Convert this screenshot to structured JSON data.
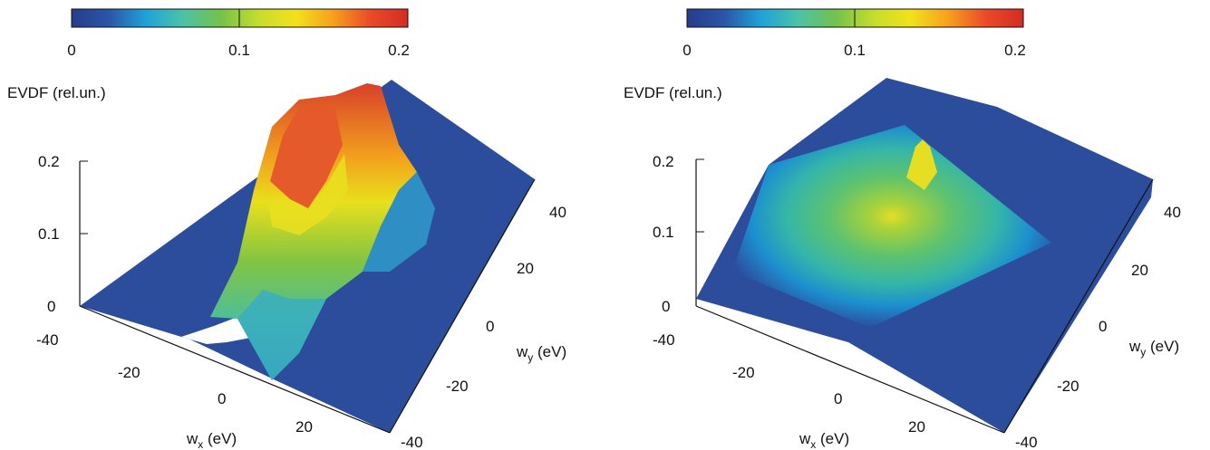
{
  "colorbar": {
    "stops": [
      "#283c8c",
      "#2a55a8",
      "#1fa3d8",
      "#4cc3a6",
      "#74c24a",
      "#c6dd2c",
      "#f3e11a",
      "#f6a01c",
      "#ea4a28",
      "#d42c24"
    ],
    "tick_values": [
      0,
      0.1,
      0.2
    ],
    "tick_labels": [
      "0",
      "0.1",
      "0.2"
    ]
  },
  "chart_data": [
    {
      "type": "surface",
      "zlabel": "EVDF (rel.un.)",
      "xlabel_main": "w",
      "xlabel_sub": "x",
      "xlabel_unit": " (eV)",
      "ylabel_main": "w",
      "ylabel_sub": "y",
      "ylabel_unit": " (eV)",
      "x_ticks": [
        "-40",
        "-20",
        "0",
        "20"
      ],
      "y_ticks": [
        "-40",
        "-20",
        "0",
        "20",
        "40"
      ],
      "z_ticks": [
        "0",
        "0.1",
        "0.2"
      ],
      "xlim": [
        -40,
        40
      ],
      "ylim": [
        -40,
        40
      ],
      "zlim": [
        0,
        0.2
      ],
      "peak_value": 0.2,
      "description_of_shape": "elongated ridge along w_y near w_x≈0"
    },
    {
      "type": "surface",
      "zlabel": "EVDF (rel.un.)",
      "xlabel_main": "w",
      "xlabel_sub": "x",
      "xlabel_unit": " (eV)",
      "ylabel_main": "w",
      "ylabel_sub": "y",
      "ylabel_unit": " (eV)",
      "x_ticks": [
        "-40",
        "-20",
        "0",
        "20"
      ],
      "y_ticks": [
        "-40",
        "-20",
        "0",
        "20",
        "40"
      ],
      "z_ticks": [
        "0",
        "0.1",
        "0.2"
      ],
      "xlim": [
        -40,
        40
      ],
      "ylim": [
        -40,
        40
      ],
      "zlim": [
        0,
        0.2
      ],
      "peak_value": 0.13,
      "description_of_shape": "pyramid-like isotropic peak centred at origin"
    }
  ]
}
